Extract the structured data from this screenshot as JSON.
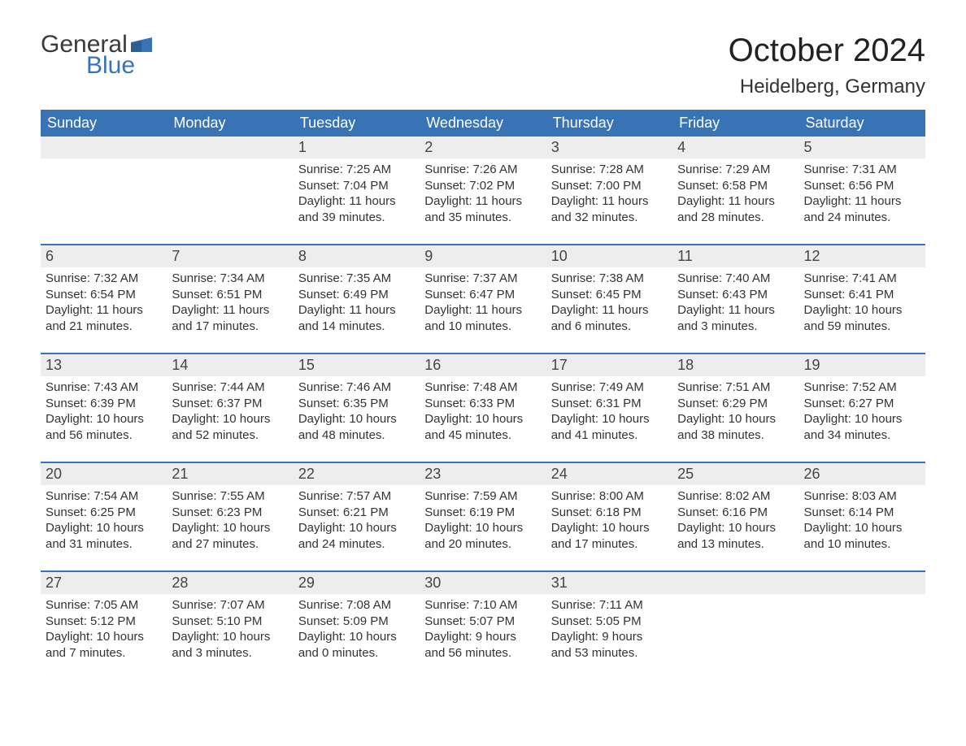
{
  "logo": {
    "text1": "General",
    "text2": "Blue",
    "flag_color": "#3874b5"
  },
  "header": {
    "title": "October 2024",
    "subtitle": "Heidelberg, Germany"
  },
  "colors": {
    "header_bg": "#3874b5",
    "weekday_text": "#ffffff",
    "daynum_bg": "#ededed",
    "text": "#333333",
    "divider": "#3874b5",
    "logo_dark": "#3a3a3a",
    "logo_blue": "#3874b5",
    "background": "#ffffff"
  },
  "typography": {
    "title_fontsize": 40,
    "subtitle_fontsize": 24,
    "weekday_fontsize": 18,
    "daynum_fontsize": 18,
    "cell_fontsize": 15
  },
  "layout": {
    "columns": 7,
    "rows": 5,
    "divider_width": 2
  },
  "weekdays": [
    "Sunday",
    "Monday",
    "Tuesday",
    "Wednesday",
    "Thursday",
    "Friday",
    "Saturday"
  ],
  "labels": {
    "sunrise": "Sunrise:",
    "sunset": "Sunset:",
    "daylight": "Daylight:"
  },
  "weeks": [
    [
      null,
      null,
      {
        "n": "1",
        "sunrise": "7:25 AM",
        "sunset": "7:04 PM",
        "dl1": "11 hours",
        "dl2": "and 39 minutes."
      },
      {
        "n": "2",
        "sunrise": "7:26 AM",
        "sunset": "7:02 PM",
        "dl1": "11 hours",
        "dl2": "and 35 minutes."
      },
      {
        "n": "3",
        "sunrise": "7:28 AM",
        "sunset": "7:00 PM",
        "dl1": "11 hours",
        "dl2": "and 32 minutes."
      },
      {
        "n": "4",
        "sunrise": "7:29 AM",
        "sunset": "6:58 PM",
        "dl1": "11 hours",
        "dl2": "and 28 minutes."
      },
      {
        "n": "5",
        "sunrise": "7:31 AM",
        "sunset": "6:56 PM",
        "dl1": "11 hours",
        "dl2": "and 24 minutes."
      }
    ],
    [
      {
        "n": "6",
        "sunrise": "7:32 AM",
        "sunset": "6:54 PM",
        "dl1": "11 hours",
        "dl2": "and 21 minutes."
      },
      {
        "n": "7",
        "sunrise": "7:34 AM",
        "sunset": "6:51 PM",
        "dl1": "11 hours",
        "dl2": "and 17 minutes."
      },
      {
        "n": "8",
        "sunrise": "7:35 AM",
        "sunset": "6:49 PM",
        "dl1": "11 hours",
        "dl2": "and 14 minutes."
      },
      {
        "n": "9",
        "sunrise": "7:37 AM",
        "sunset": "6:47 PM",
        "dl1": "11 hours",
        "dl2": "and 10 minutes."
      },
      {
        "n": "10",
        "sunrise": "7:38 AM",
        "sunset": "6:45 PM",
        "dl1": "11 hours",
        "dl2": "and 6 minutes."
      },
      {
        "n": "11",
        "sunrise": "7:40 AM",
        "sunset": "6:43 PM",
        "dl1": "11 hours",
        "dl2": "and 3 minutes."
      },
      {
        "n": "12",
        "sunrise": "7:41 AM",
        "sunset": "6:41 PM",
        "dl1": "10 hours",
        "dl2": "and 59 minutes."
      }
    ],
    [
      {
        "n": "13",
        "sunrise": "7:43 AM",
        "sunset": "6:39 PM",
        "dl1": "10 hours",
        "dl2": "and 56 minutes."
      },
      {
        "n": "14",
        "sunrise": "7:44 AM",
        "sunset": "6:37 PM",
        "dl1": "10 hours",
        "dl2": "and 52 minutes."
      },
      {
        "n": "15",
        "sunrise": "7:46 AM",
        "sunset": "6:35 PM",
        "dl1": "10 hours",
        "dl2": "and 48 minutes."
      },
      {
        "n": "16",
        "sunrise": "7:48 AM",
        "sunset": "6:33 PM",
        "dl1": "10 hours",
        "dl2": "and 45 minutes."
      },
      {
        "n": "17",
        "sunrise": "7:49 AM",
        "sunset": "6:31 PM",
        "dl1": "10 hours",
        "dl2": "and 41 minutes."
      },
      {
        "n": "18",
        "sunrise": "7:51 AM",
        "sunset": "6:29 PM",
        "dl1": "10 hours",
        "dl2": "and 38 minutes."
      },
      {
        "n": "19",
        "sunrise": "7:52 AM",
        "sunset": "6:27 PM",
        "dl1": "10 hours",
        "dl2": "and 34 minutes."
      }
    ],
    [
      {
        "n": "20",
        "sunrise": "7:54 AM",
        "sunset": "6:25 PM",
        "dl1": "10 hours",
        "dl2": "and 31 minutes."
      },
      {
        "n": "21",
        "sunrise": "7:55 AM",
        "sunset": "6:23 PM",
        "dl1": "10 hours",
        "dl2": "and 27 minutes."
      },
      {
        "n": "22",
        "sunrise": "7:57 AM",
        "sunset": "6:21 PM",
        "dl1": "10 hours",
        "dl2": "and 24 minutes."
      },
      {
        "n": "23",
        "sunrise": "7:59 AM",
        "sunset": "6:19 PM",
        "dl1": "10 hours",
        "dl2": "and 20 minutes."
      },
      {
        "n": "24",
        "sunrise": "8:00 AM",
        "sunset": "6:18 PM",
        "dl1": "10 hours",
        "dl2": "and 17 minutes."
      },
      {
        "n": "25",
        "sunrise": "8:02 AM",
        "sunset": "6:16 PM",
        "dl1": "10 hours",
        "dl2": "and 13 minutes."
      },
      {
        "n": "26",
        "sunrise": "8:03 AM",
        "sunset": "6:14 PM",
        "dl1": "10 hours",
        "dl2": "and 10 minutes."
      }
    ],
    [
      {
        "n": "27",
        "sunrise": "7:05 AM",
        "sunset": "5:12 PM",
        "dl1": "10 hours",
        "dl2": "and 7 minutes."
      },
      {
        "n": "28",
        "sunrise": "7:07 AM",
        "sunset": "5:10 PM",
        "dl1": "10 hours",
        "dl2": "and 3 minutes."
      },
      {
        "n": "29",
        "sunrise": "7:08 AM",
        "sunset": "5:09 PM",
        "dl1": "10 hours",
        "dl2": "and 0 minutes."
      },
      {
        "n": "30",
        "sunrise": "7:10 AM",
        "sunset": "5:07 PM",
        "dl1": "9 hours",
        "dl2": "and 56 minutes."
      },
      {
        "n": "31",
        "sunrise": "7:11 AM",
        "sunset": "5:05 PM",
        "dl1": "9 hours",
        "dl2": "and 53 minutes."
      },
      null,
      null
    ]
  ]
}
